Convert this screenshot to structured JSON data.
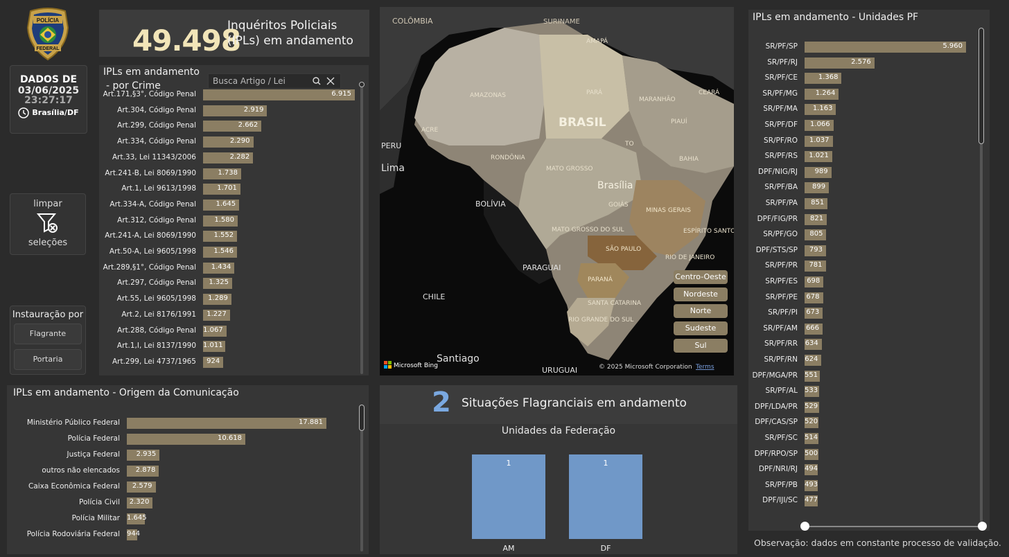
{
  "badge": {
    "line1": "POLÍCIA",
    "line2": "FEDERAL"
  },
  "kpi": {
    "value": "49.498",
    "label_line1": "Inquéritos Policiais",
    "label_line2": "(IPLs) em andamento"
  },
  "dates": {
    "title": "DADOS DE",
    "date": "03/06/2025",
    "time": "23:27:17",
    "location": "Brasília/DF"
  },
  "clear_button": {
    "line1": "limpar",
    "line2": "seleções"
  },
  "instauracao": {
    "title": "Instauração por",
    "options": [
      "Flagrante",
      "Portaria"
    ]
  },
  "crime_panel": {
    "title_line1": "IPLs em andamento",
    "title_line2": "- por Crime",
    "search_placeholder": "Busca Artigo / Lei",
    "rows": [
      {
        "label": "Art.171,§3°, Código Penal",
        "value": 6915,
        "display": "6.915"
      },
      {
        "label": "Art.304, Código Penal",
        "value": 2919,
        "display": "2.919"
      },
      {
        "label": "Art.299, Código Penal",
        "value": 2662,
        "display": "2.662"
      },
      {
        "label": "Art.334, Código Penal",
        "value": 2290,
        "display": "2.290"
      },
      {
        "label": "Art.33, Lei 11343/2006",
        "value": 2282,
        "display": "2.282"
      },
      {
        "label": "Art.241-B, Lei 8069/1990",
        "value": 1738,
        "display": "1.738"
      },
      {
        "label": "Art.1, Lei 9613/1998",
        "value": 1701,
        "display": "1.701"
      },
      {
        "label": "Art.334-A, Código Penal",
        "value": 1645,
        "display": "1.645"
      },
      {
        "label": "Art.312, Código Penal",
        "value": 1580,
        "display": "1.580"
      },
      {
        "label": "Art.241-A, Lei 8069/1990",
        "value": 1552,
        "display": "1.552"
      },
      {
        "label": "Art.50-A, Lei 9605/1998",
        "value": 1546,
        "display": "1.546"
      },
      {
        "label": "Art.289,§1°, Código Penal",
        "value": 1434,
        "display": "1.434"
      },
      {
        "label": "Art.297, Código Penal",
        "value": 1325,
        "display": "1.325"
      },
      {
        "label": "Art.55, Lei 9605/1998",
        "value": 1289,
        "display": "1.289"
      },
      {
        "label": "Art.2, Lei 8176/1991",
        "value": 1227,
        "display": "1.227"
      },
      {
        "label": "Art.288, Código Penal",
        "value": 1067,
        "display": "1.067"
      },
      {
        "label": "Art.1,I, Lei 8137/1990",
        "value": 1011,
        "display": "1.011"
      },
      {
        "label": "Art.299, Lei 4737/1965",
        "value": 924,
        "display": "924"
      }
    ]
  },
  "map": {
    "labels": [
      "COLÔMBIA",
      "SURINAME",
      "AMAPÁ",
      "AMAZONAS",
      "PARÁ",
      "MARANHÃO",
      "CEARÁ",
      "ACRE",
      "PERU",
      "Lima",
      "BRASIL",
      "PIAUÍ",
      "RONDÔNIA",
      "TO",
      "BAHIA",
      "MATO GROSSO",
      "Brasília",
      "BOLÍVIA",
      "GOIÁS",
      "MINAS GERAIS",
      "MATO GROSSO DO SUL",
      "ESPÍRITO SANTO",
      "SÃO PAULO",
      "RIO DE JANEIRO",
      "PARAGUAI",
      "PARANÁ",
      "CHILE",
      "SANTA CATARINA",
      "RIO GRANDE DO SUL",
      "Santiago",
      "URUGUAI"
    ],
    "regions": [
      "Centro-Oeste",
      "Nordeste",
      "Norte",
      "Sudeste",
      "Sul"
    ],
    "bing": "Microsoft Bing",
    "copyright": "© 2025 Microsoft Corporation",
    "terms": "Terms"
  },
  "origem_panel": {
    "title": "IPLs em andamento - Origem da Comunicação",
    "rows": [
      {
        "label": "Ministério Público Federal",
        "value": 17881,
        "display": "17.881"
      },
      {
        "label": "Polícia Federal",
        "value": 10618,
        "display": "10.618"
      },
      {
        "label": "Justiça Federal",
        "value": 2935,
        "display": "2.935"
      },
      {
        "label": "outros não elencados",
        "value": 2878,
        "display": "2.878"
      },
      {
        "label": "Caixa Econômica Federal",
        "value": 2579,
        "display": "2.579"
      },
      {
        "label": "Polícia Civil",
        "value": 2320,
        "display": "2.320"
      },
      {
        "label": "Polícia Militar",
        "value": 1645,
        "display": "1.645"
      },
      {
        "label": "Polícia Rodoviária Federal",
        "value": 944,
        "display": "944"
      }
    ]
  },
  "flagrante": {
    "count": "2",
    "label": "Situações Flagranciais em andamento",
    "chart_title": "Unidades da Federação"
  },
  "chart_data": {
    "type": "bar",
    "title": "Unidades da Federação",
    "categories": [
      "AM",
      "DF"
    ],
    "values": [
      1,
      1
    ],
    "ylim": [
      0,
      1
    ],
    "color": "#7098c8"
  },
  "units_panel": {
    "title": "IPLs em andamento - Unidades PF",
    "rows": [
      {
        "label": "SR/PF/SP",
        "value": 5960,
        "display": "5.960"
      },
      {
        "label": "SR/PF/RJ",
        "value": 2576,
        "display": "2.576"
      },
      {
        "label": "SR/PF/CE",
        "value": 1368,
        "display": "1.368"
      },
      {
        "label": "SR/PF/MG",
        "value": 1264,
        "display": "1.264"
      },
      {
        "label": "SR/PF/MA",
        "value": 1163,
        "display": "1.163"
      },
      {
        "label": "SR/PF/DF",
        "value": 1066,
        "display": "1.066"
      },
      {
        "label": "SR/PF/RO",
        "value": 1037,
        "display": "1.037"
      },
      {
        "label": "SR/PF/RS",
        "value": 1021,
        "display": "1.021"
      },
      {
        "label": "DPF/NIG/RJ",
        "value": 989,
        "display": "989"
      },
      {
        "label": "SR/PF/BA",
        "value": 899,
        "display": "899"
      },
      {
        "label": "SR/PF/PA",
        "value": 851,
        "display": "851"
      },
      {
        "label": "DPF/FIG/PR",
        "value": 821,
        "display": "821"
      },
      {
        "label": "SR/PF/GO",
        "value": 805,
        "display": "805"
      },
      {
        "label": "DPF/STS/SP",
        "value": 793,
        "display": "793"
      },
      {
        "label": "SR/PF/PR",
        "value": 781,
        "display": "781"
      },
      {
        "label": "SR/PF/ES",
        "value": 698,
        "display": "698"
      },
      {
        "label": "SR/PF/PE",
        "value": 678,
        "display": "678"
      },
      {
        "label": "SR/PF/PI",
        "value": 673,
        "display": "673"
      },
      {
        "label": "SR/PF/AM",
        "value": 666,
        "display": "666"
      },
      {
        "label": "SR/PF/RR",
        "value": 634,
        "display": "634"
      },
      {
        "label": "SR/PF/RN",
        "value": 624,
        "display": "624"
      },
      {
        "label": "DPF/MGA/PR",
        "value": 551,
        "display": "551"
      },
      {
        "label": "SR/PF/AL",
        "value": 533,
        "display": "533"
      },
      {
        "label": "DPF/LDA/PR",
        "value": 529,
        "display": "529"
      },
      {
        "label": "DPF/CAS/SP",
        "value": 520,
        "display": "520"
      },
      {
        "label": "SR/PF/SC",
        "value": 514,
        "display": "514"
      },
      {
        "label": "DPF/RPO/SP",
        "value": 500,
        "display": "500"
      },
      {
        "label": "DPF/NRI/RJ",
        "value": 494,
        "display": "494"
      },
      {
        "label": "SR/PF/PB",
        "value": 493,
        "display": "493"
      },
      {
        "label": "DPF/IJI/SC",
        "value": 477,
        "display": "477"
      }
    ]
  },
  "observation": "Observação: dados em constante processo de validação.",
  "colors": {
    "bar": "#8b7e63",
    "accent": "#f2e5b8",
    "flag_bar": "#7098c8"
  }
}
